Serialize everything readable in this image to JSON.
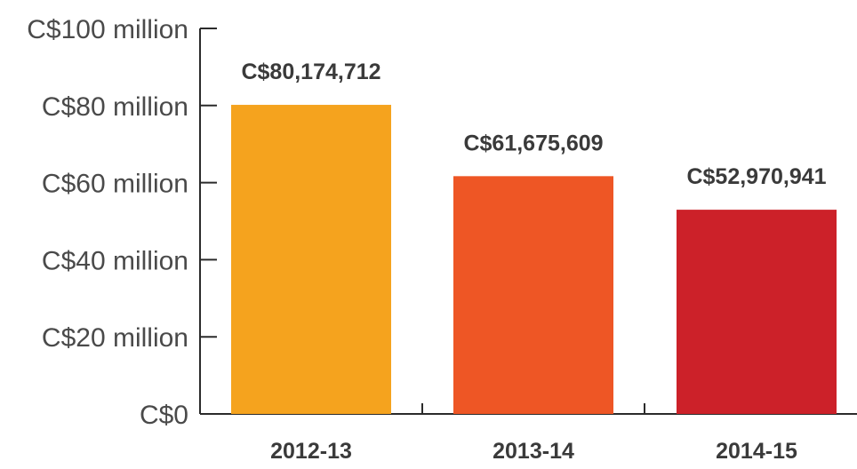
{
  "chart_data": {
    "type": "bar",
    "categories": [
      "2012-13",
      "2013-14",
      "2014-15"
    ],
    "values": [
      80174712,
      61675609,
      52970941
    ],
    "data_labels": [
      "C$80,174,712",
      "C$61,675,609",
      "C$52,970,941"
    ],
    "bar_colors": [
      "#F5A31E",
      "#EE5625",
      "#CC2129"
    ],
    "y_ticks": [
      0,
      20000000,
      40000000,
      60000000,
      80000000,
      100000000
    ],
    "y_tick_labels": [
      "C$0",
      "C$20 million",
      "C$40 million",
      "C$60 million",
      "C$80 million",
      "C$100 million"
    ],
    "ylim": [
      0,
      100000000
    ],
    "title": "",
    "xlabel": "",
    "ylabel": "",
    "grid": false,
    "legend": "none"
  }
}
